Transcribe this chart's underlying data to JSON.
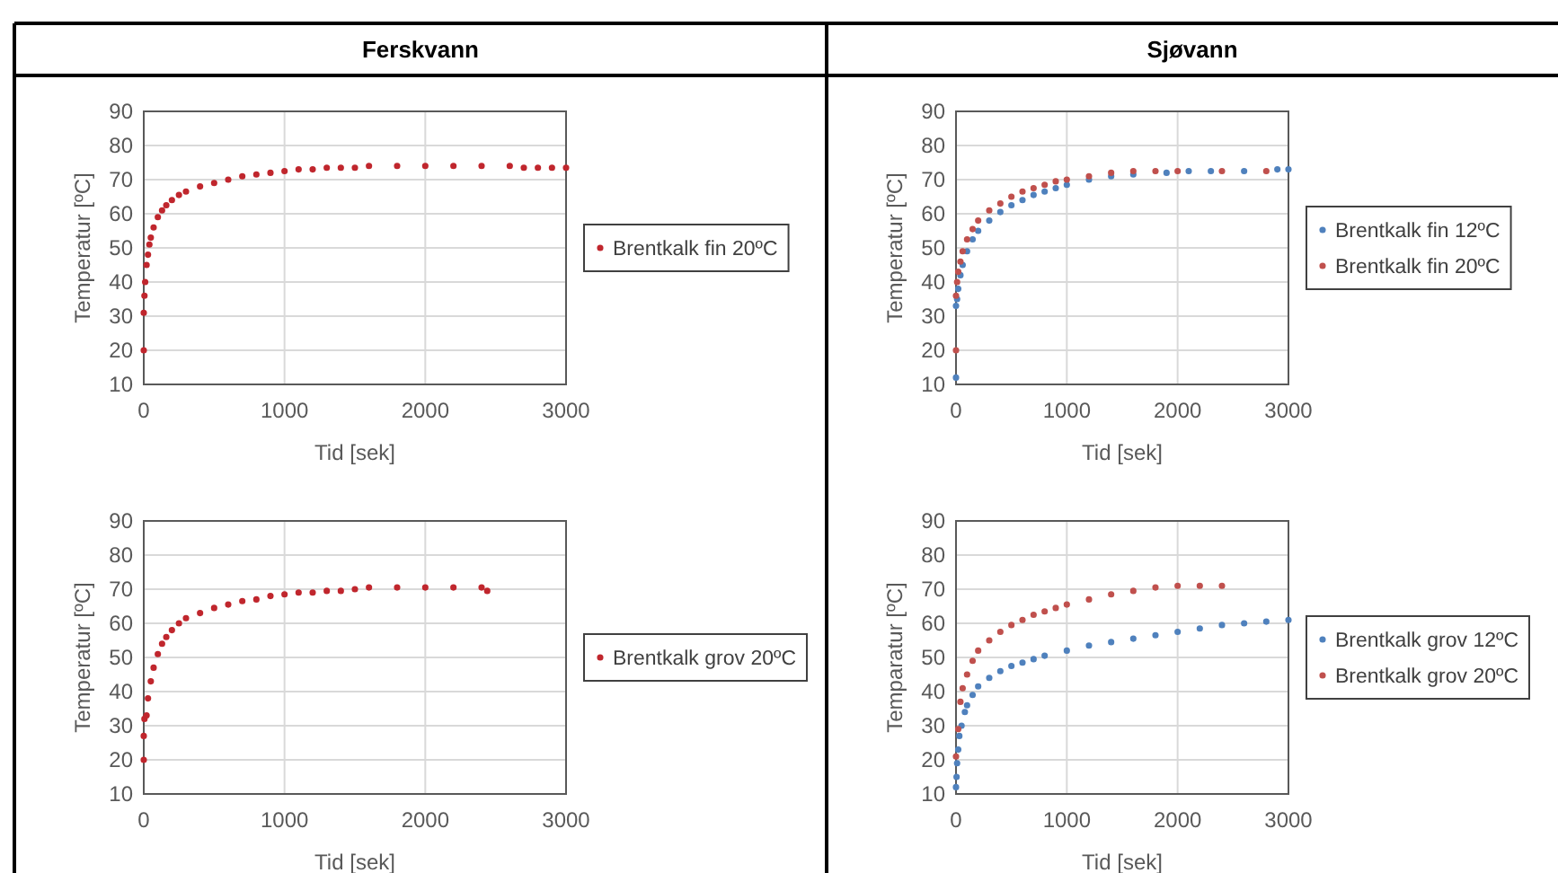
{
  "chart_data": [
    {
      "type": "scatter",
      "title": "Ferskvann",
      "xlabel": "Tid [sek]",
      "ylabel": "Temperatur  [ºC]",
      "xlim": [
        0,
        3000
      ],
      "xticks": [
        0,
        1000,
        2000,
        3000
      ],
      "ylim": [
        10,
        90
      ],
      "yticks": [
        10,
        20,
        30,
        40,
        50,
        60,
        70,
        80,
        90
      ],
      "grid": true,
      "legend": "right",
      "marker": "circle",
      "series": [
        {
          "name": "Brentkalk fin 20ºC",
          "color": "#c0262d",
          "x": [
            0,
            0,
            5,
            10,
            20,
            30,
            40,
            50,
            70,
            100,
            130,
            160,
            200,
            250,
            300,
            400,
            500,
            600,
            700,
            800,
            900,
            1000,
            1100,
            1200,
            1300,
            1400,
            1500,
            1600,
            1800,
            2000,
            2200,
            2400,
            2600,
            2700,
            2800,
            2900,
            3000
          ],
          "values": [
            20,
            31,
            36,
            40,
            45,
            48,
            51,
            53,
            56,
            59,
            61,
            62.5,
            64,
            65.5,
            66.5,
            68,
            69,
            70,
            71,
            71.5,
            72,
            72.5,
            73,
            73,
            73.5,
            73.5,
            73.5,
            74,
            74,
            74,
            74,
            74,
            74,
            73.5,
            73.5,
            73.5,
            73.5
          ]
        }
      ]
    },
    {
      "type": "scatter",
      "title": "Sjøvann",
      "xlabel": "Tid [sek]",
      "ylabel": "Temperatur  [ºC]",
      "xlim": [
        0,
        3000
      ],
      "xticks": [
        0,
        1000,
        2000,
        3000
      ],
      "ylim": [
        10,
        90
      ],
      "yticks": [
        10,
        20,
        30,
        40,
        50,
        60,
        70,
        80,
        90
      ],
      "grid": true,
      "legend": "right",
      "marker": "circle",
      "series": [
        {
          "name": "Brentkalk fin 12ºC",
          "color": "#4f81bd",
          "x": [
            0,
            0,
            10,
            20,
            40,
            60,
            100,
            150,
            200,
            300,
            400,
            500,
            600,
            700,
            800,
            900,
            1000,
            1200,
            1400,
            1600,
            1900,
            2100,
            2300,
            2600,
            2900,
            3000
          ],
          "values": [
            12,
            33,
            35,
            38,
            42,
            45,
            49,
            52.5,
            55,
            58,
            60.5,
            62.5,
            64,
            65.5,
            66.5,
            67.5,
            68.5,
            70,
            71,
            71.5,
            72,
            72.5,
            72.5,
            72.5,
            73,
            73
          ]
        },
        {
          "name": "Brentkalk fin 20ºC",
          "color": "#c0504d",
          "x": [
            0,
            0,
            10,
            20,
            40,
            60,
            100,
            150,
            200,
            300,
            400,
            500,
            600,
            700,
            800,
            900,
            1000,
            1200,
            1400,
            1600,
            1800,
            2000,
            2400,
            2800
          ],
          "values": [
            20,
            36,
            40,
            43,
            46,
            49,
            52.5,
            55.5,
            58,
            61,
            63,
            65,
            66.5,
            67.5,
            68.5,
            69.5,
            70,
            71,
            72,
            72.5,
            72.5,
            72.5,
            72.5,
            72.5
          ]
        }
      ]
    },
    {
      "type": "scatter",
      "xlabel": "Tid [sek]",
      "ylabel": "Temperatur  [ºC]",
      "xlim": [
        0,
        3000
      ],
      "xticks": [
        0,
        1000,
        2000,
        3000
      ],
      "ylim": [
        10,
        90
      ],
      "yticks": [
        10,
        20,
        30,
        40,
        50,
        60,
        70,
        80,
        90
      ],
      "grid": true,
      "legend": "right",
      "marker": "circle",
      "series": [
        {
          "name": "Brentkalk grov 20ºC",
          "color": "#c0262d",
          "x": [
            0,
            0,
            5,
            20,
            30,
            50,
            70,
            100,
            130,
            160,
            200,
            250,
            300,
            400,
            500,
            600,
            700,
            800,
            900,
            1000,
            1100,
            1200,
            1300,
            1400,
            1500,
            1600,
            1800,
            2000,
            2200,
            2400,
            2440
          ],
          "values": [
            20,
            27,
            32,
            33,
            38,
            43,
            47,
            51,
            54,
            56,
            58,
            60,
            61.5,
            63,
            64.5,
            65.5,
            66.5,
            67,
            68,
            68.5,
            69,
            69,
            69.5,
            69.5,
            70,
            70.5,
            70.5,
            70.5,
            70.5,
            70.5,
            69.5
          ]
        }
      ]
    },
    {
      "type": "scatter",
      "xlabel": "Tid [sek]",
      "ylabel": "Temparatur [ºC]",
      "xlim": [
        0,
        3000
      ],
      "xticks": [
        0,
        1000,
        2000,
        3000
      ],
      "ylim": [
        10,
        90
      ],
      "yticks": [
        10,
        20,
        30,
        40,
        50,
        60,
        70,
        80,
        90
      ],
      "grid": true,
      "legend": "right",
      "marker": "circle",
      "series": [
        {
          "name": "Brentkalk grov 12ºC",
          "color": "#4f81bd",
          "x": [
            0,
            5,
            10,
            20,
            30,
            50,
            80,
            100,
            150,
            200,
            300,
            400,
            500,
            600,
            700,
            800,
            1000,
            1200,
            1400,
            1600,
            1800,
            2000,
            2200,
            2400,
            2600,
            2800,
            3000
          ],
          "values": [
            12,
            15,
            19,
            23,
            27,
            30,
            34,
            36,
            39,
            41.5,
            44,
            46,
            47.5,
            48.5,
            49.5,
            50.5,
            52,
            53.5,
            54.5,
            55.5,
            56.5,
            57.5,
            58.5,
            59.5,
            60,
            60.5,
            61
          ]
        },
        {
          "name": "Brentkalk grov 20ºC",
          "color": "#c0504d",
          "x": [
            0,
            20,
            40,
            60,
            100,
            150,
            200,
            300,
            400,
            500,
            600,
            700,
            800,
            900,
            1000,
            1200,
            1400,
            1600,
            1800,
            2000,
            2200,
            2400
          ],
          "values": [
            21,
            29,
            37,
            41,
            45,
            49,
            52,
            55,
            57.5,
            59.5,
            61,
            62.5,
            63.5,
            64.5,
            65.5,
            67,
            68.5,
            69.5,
            70.5,
            71,
            71,
            71
          ]
        }
      ]
    }
  ]
}
